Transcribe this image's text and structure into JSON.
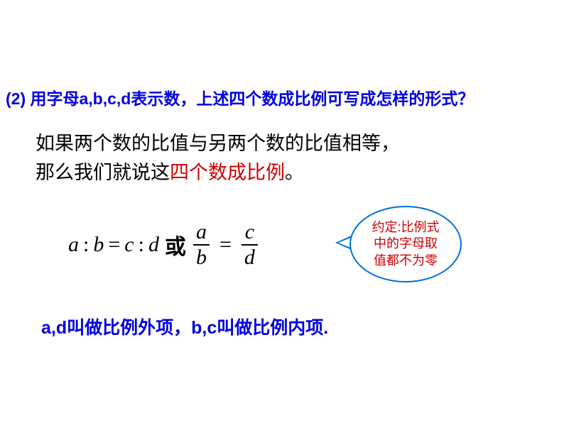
{
  "question": {
    "prefix": "(2) ",
    "text": "用字母a,b,c,d表示数，上述四个数成比例可写成怎样的形式？",
    "color": "#0000e0",
    "fontsize": 23
  },
  "statement": {
    "line1_black": "如果两个数的比值与另两个数的比值相等，",
    "line2_black": "那么我们就说这",
    "line2_red": "四个数成比例",
    "line2_black2": "。",
    "black_color": "#000000",
    "red_color": "#d00000",
    "fontsize": 27
  },
  "formula": {
    "a": "a",
    "b": "b",
    "c": "c",
    "d": "d",
    "colon": ":",
    "eq": "=",
    "or": "或",
    "fontsize": 30,
    "color": "#000000"
  },
  "callout": {
    "line1": "约定:比例式",
    "line2": "中的字母取",
    "line3": "值都不为零",
    "text_color": "#d00000",
    "border_color": "#0070d8",
    "fontsize": 18
  },
  "footer": {
    "text": "a,d叫做比例外项，b,c叫做比例内项.",
    "color": "#0000e0",
    "fontsize": 25
  }
}
